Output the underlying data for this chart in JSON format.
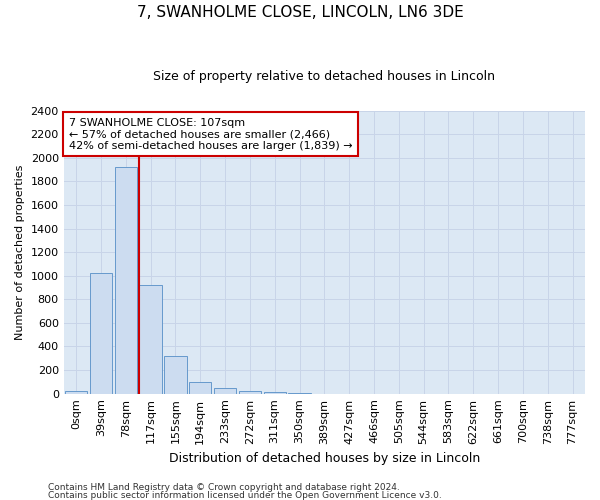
{
  "title": "7, SWANHOLME CLOSE, LINCOLN, LN6 3DE",
  "subtitle": "Size of property relative to detached houses in Lincoln",
  "xlabel": "Distribution of detached houses by size in Lincoln",
  "ylabel": "Number of detached properties",
  "categories": [
    "0sqm",
    "39sqm",
    "78sqm",
    "117sqm",
    "155sqm",
    "194sqm",
    "233sqm",
    "272sqm",
    "311sqm",
    "350sqm",
    "389sqm",
    "427sqm",
    "466sqm",
    "505sqm",
    "544sqm",
    "583sqm",
    "622sqm",
    "661sqm",
    "700sqm",
    "738sqm",
    "777sqm"
  ],
  "values": [
    20,
    1020,
    1920,
    920,
    320,
    100,
    50,
    25,
    15,
    5,
    0,
    0,
    0,
    0,
    0,
    0,
    0,
    0,
    0,
    0,
    0
  ],
  "bar_color": "#ccdcf0",
  "bar_edge_color": "#6699cc",
  "vline_index": 3,
  "vline_color": "#cc0000",
  "annotation_line1": "7 SWANHOLME CLOSE: 107sqm",
  "annotation_line2": "← 57% of detached houses are smaller (2,466)",
  "annotation_line3": "42% of semi-detached houses are larger (1,839) →",
  "annotation_box_facecolor": "#ffffff",
  "annotation_box_edgecolor": "#cc0000",
  "ylim": [
    0,
    2400
  ],
  "yticks": [
    0,
    200,
    400,
    600,
    800,
    1000,
    1200,
    1400,
    1600,
    1800,
    2000,
    2200,
    2400
  ],
  "grid_color": "#c8d4e8",
  "bg_color": "#dce8f4",
  "title_fontsize": 11,
  "subtitle_fontsize": 9,
  "ylabel_fontsize": 8,
  "xlabel_fontsize": 9,
  "xtick_fontsize": 7.5,
  "ytick_fontsize": 8,
  "footer1": "Contains HM Land Registry data © Crown copyright and database right 2024.",
  "footer2": "Contains public sector information licensed under the Open Government Licence v3.0."
}
